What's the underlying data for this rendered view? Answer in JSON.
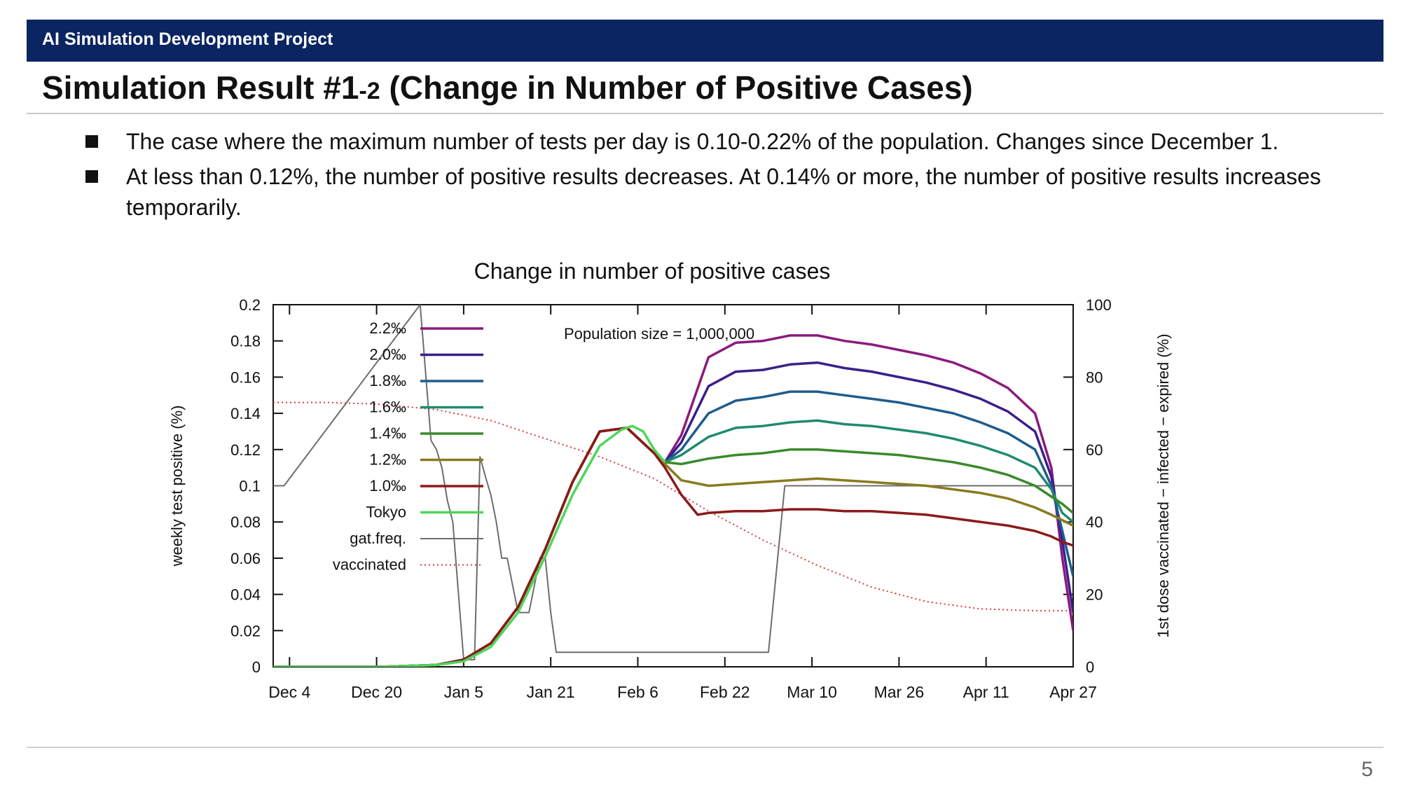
{
  "header": {
    "project": "AI Simulation Development Project"
  },
  "slide": {
    "title_main": "Simulation Result #1",
    "title_small": "-2",
    "title_rest": " (Change in Number of Positive Cases)",
    "bullets": [
      "The case where the maximum number of tests per day is 0.10-0.22% of the population. Changes since December 1.",
      "At less than 0.12%, the number of positive results decreases. At 0.14% or more, the number of positive results increases temporarily."
    ],
    "page_number": "5"
  },
  "chart_data": {
    "type": "line",
    "title": "Change in number of positive cases",
    "annotation": "Population size = 1,000,000",
    "ylabel": "weekly test positive (%)",
    "y2label": "1st dose vaccinated − infected − expired (%)",
    "xlim": [
      0,
      147
    ],
    "ylim": [
      0,
      0.2
    ],
    "y2lim": [
      0,
      100
    ],
    "x_ticks": [
      {
        "label": "Dec 4",
        "day": 3
      },
      {
        "label": "Dec 20",
        "day": 19
      },
      {
        "label": "Jan 5",
        "day": 35
      },
      {
        "label": "Jan 21",
        "day": 51
      },
      {
        "label": "Feb 6",
        "day": 67
      },
      {
        "label": "Feb 22",
        "day": 83
      },
      {
        "label": "Mar 10",
        "day": 99
      },
      {
        "label": "Mar 26",
        "day": 115
      },
      {
        "label": "Apr 11",
        "day": 131
      },
      {
        "label": "Apr 27",
        "day": 147
      }
    ],
    "y_ticks": [
      "0",
      "0.02",
      "0.04",
      "0.06",
      "0.08",
      "0.1",
      "0.12",
      "0.14",
      "0.16",
      "0.18",
      "0.2"
    ],
    "y2_ticks": [
      "0",
      "20",
      "40",
      "60",
      "80",
      "100"
    ],
    "legend_position": "top-left inside",
    "series": [
      {
        "name": "2.2‰",
        "color": "#8b1a7e",
        "dash": "solid",
        "axis": "left",
        "x": [
          0,
          20,
          30,
          35,
          40,
          45,
          50,
          55,
          60,
          65,
          70,
          72,
          75,
          80,
          85,
          90,
          95,
          100,
          105,
          110,
          115,
          120,
          125,
          130,
          135,
          140,
          143,
          145,
          147
        ],
        "y": [
          0,
          0,
          0.001,
          0.004,
          0.013,
          0.033,
          0.065,
          0.102,
          0.13,
          0.132,
          0.118,
          0.113,
          0.128,
          0.171,
          0.179,
          0.18,
          0.183,
          0.183,
          0.18,
          0.178,
          0.175,
          0.172,
          0.168,
          0.162,
          0.154,
          0.14,
          0.11,
          0.06,
          0.02
        ]
      },
      {
        "name": "2.0‰",
        "color": "#3b1f8a",
        "dash": "solid",
        "axis": "left",
        "x": [
          0,
          20,
          30,
          35,
          40,
          45,
          50,
          55,
          60,
          65,
          70,
          72,
          75,
          80,
          85,
          90,
          95,
          100,
          105,
          110,
          115,
          120,
          125,
          130,
          135,
          140,
          143,
          145,
          147
        ],
        "y": [
          0,
          0,
          0.001,
          0.004,
          0.013,
          0.033,
          0.065,
          0.102,
          0.13,
          0.132,
          0.118,
          0.113,
          0.124,
          0.155,
          0.163,
          0.164,
          0.167,
          0.168,
          0.165,
          0.163,
          0.16,
          0.157,
          0.153,
          0.148,
          0.141,
          0.13,
          0.105,
          0.07,
          0.03
        ]
      },
      {
        "name": "1.8‰",
        "color": "#1e5c8c",
        "dash": "solid",
        "axis": "left",
        "x": [
          0,
          20,
          30,
          35,
          40,
          45,
          50,
          55,
          60,
          65,
          70,
          72,
          75,
          80,
          85,
          90,
          95,
          100,
          105,
          110,
          115,
          120,
          125,
          130,
          135,
          140,
          143,
          145,
          147
        ],
        "y": [
          0,
          0,
          0.001,
          0.004,
          0.013,
          0.033,
          0.065,
          0.102,
          0.13,
          0.132,
          0.118,
          0.113,
          0.12,
          0.14,
          0.147,
          0.149,
          0.152,
          0.152,
          0.15,
          0.148,
          0.146,
          0.143,
          0.14,
          0.135,
          0.129,
          0.12,
          0.1,
          0.075,
          0.05
        ]
      },
      {
        "name": "1.6‰",
        "color": "#1f8a70",
        "dash": "solid",
        "axis": "left",
        "x": [
          0,
          20,
          30,
          35,
          40,
          45,
          50,
          55,
          60,
          65,
          70,
          72,
          75,
          80,
          85,
          90,
          95,
          100,
          105,
          110,
          115,
          120,
          125,
          130,
          135,
          140,
          143,
          145,
          147
        ],
        "y": [
          0,
          0,
          0.001,
          0.004,
          0.013,
          0.033,
          0.065,
          0.102,
          0.13,
          0.132,
          0.118,
          0.113,
          0.117,
          0.127,
          0.132,
          0.133,
          0.135,
          0.136,
          0.134,
          0.133,
          0.131,
          0.129,
          0.126,
          0.122,
          0.117,
          0.11,
          0.098,
          0.085,
          0.08
        ]
      },
      {
        "name": "1.4‰",
        "color": "#3a8a2a",
        "dash": "solid",
        "axis": "left",
        "x": [
          0,
          20,
          30,
          35,
          40,
          45,
          50,
          55,
          60,
          65,
          70,
          72,
          75,
          80,
          85,
          90,
          95,
          100,
          105,
          110,
          115,
          120,
          125,
          130,
          135,
          140,
          143,
          145,
          147
        ],
        "y": [
          0,
          0,
          0.001,
          0.004,
          0.013,
          0.033,
          0.065,
          0.102,
          0.13,
          0.132,
          0.118,
          0.113,
          0.112,
          0.115,
          0.117,
          0.118,
          0.12,
          0.12,
          0.119,
          0.118,
          0.117,
          0.115,
          0.113,
          0.11,
          0.106,
          0.1,
          0.094,
          0.09,
          0.085
        ]
      },
      {
        "name": "1.2‰",
        "color": "#8a7a1f",
        "dash": "solid",
        "axis": "left",
        "x": [
          0,
          20,
          30,
          35,
          40,
          45,
          50,
          55,
          60,
          65,
          70,
          72,
          75,
          80,
          85,
          90,
          95,
          100,
          105,
          110,
          115,
          120,
          125,
          130,
          135,
          140,
          143,
          145,
          147
        ],
        "y": [
          0,
          0,
          0.001,
          0.004,
          0.013,
          0.033,
          0.065,
          0.102,
          0.13,
          0.132,
          0.118,
          0.112,
          0.103,
          0.1,
          0.101,
          0.102,
          0.103,
          0.104,
          0.103,
          0.102,
          0.101,
          0.1,
          0.098,
          0.096,
          0.093,
          0.088,
          0.084,
          0.081,
          0.078
        ]
      },
      {
        "name": "1.0‰",
        "color": "#8b1a1a",
        "dash": "solid",
        "axis": "left",
        "x": [
          0,
          20,
          30,
          35,
          40,
          45,
          50,
          55,
          60,
          65,
          70,
          72,
          75,
          78,
          80,
          85,
          90,
          95,
          100,
          105,
          110,
          115,
          120,
          125,
          130,
          135,
          140,
          143,
          145,
          147
        ],
        "y": [
          0,
          0,
          0.001,
          0.004,
          0.013,
          0.033,
          0.065,
          0.102,
          0.13,
          0.132,
          0.118,
          0.11,
          0.095,
          0.084,
          0.085,
          0.086,
          0.086,
          0.087,
          0.087,
          0.086,
          0.086,
          0.085,
          0.084,
          0.082,
          0.08,
          0.078,
          0.075,
          0.072,
          0.069,
          0.067
        ]
      },
      {
        "name": "Tokyo",
        "color": "#4dd65a",
        "dash": "solid",
        "axis": "left",
        "x": [
          0,
          20,
          30,
          35,
          40,
          45,
          50,
          55,
          60,
          64,
          66,
          68,
          70,
          72
        ],
        "y": [
          0,
          0,
          0.001,
          0.003,
          0.011,
          0.03,
          0.061,
          0.095,
          0.122,
          0.131,
          0.133,
          0.13,
          0.12,
          0.113
        ]
      },
      {
        "name": "gat.freq.",
        "color": "#6d6d6d",
        "dash": "solid",
        "axis": "left",
        "x": [
          0,
          2,
          27,
          29,
          30,
          31,
          32,
          33,
          35,
          36,
          37,
          38,
          39,
          40,
          41,
          42,
          43,
          44,
          45,
          46,
          47,
          48,
          49,
          50,
          51,
          52,
          91,
          94,
          125,
          147
        ],
        "y": [
          0.1,
          0.1,
          0.2,
          0.125,
          0.12,
          0.11,
          0.092,
          0.08,
          0.004,
          0.004,
          0.004,
          0.116,
          0.105,
          0.095,
          0.08,
          0.06,
          0.06,
          0.045,
          0.03,
          0.03,
          0.03,
          0.045,
          0.06,
          0.06,
          0.03,
          0.008,
          0.008,
          0.1,
          0.1,
          0.1
        ]
      },
      {
        "name": "vaccinated",
        "color": "#d93a3a",
        "dash": "dotted",
        "axis": "right",
        "x": [
          0,
          10,
          20,
          30,
          40,
          50,
          60,
          70,
          80,
          90,
          100,
          110,
          120,
          130,
          140,
          147
        ],
        "y": [
          73,
          73,
          72.5,
          71,
          68,
          63,
          58,
          52,
          43,
          35,
          28,
          22,
          18,
          16,
          15.5,
          15.5
        ]
      }
    ]
  }
}
